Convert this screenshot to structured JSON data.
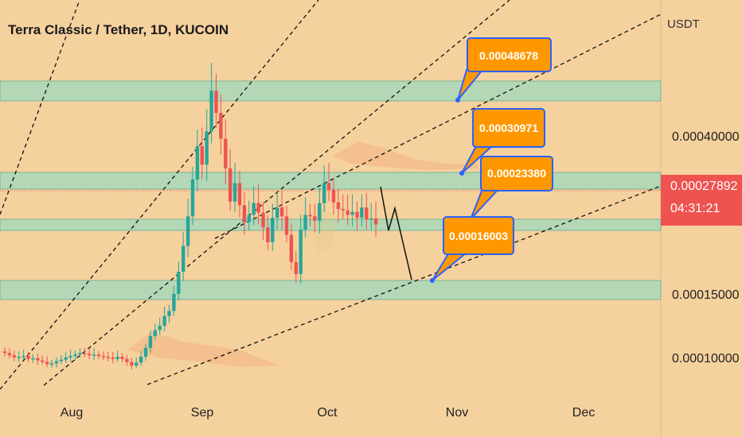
{
  "header": {
    "title": "Terra Classic / Tether, 1D, KUCOIN"
  },
  "y_axis": {
    "unit": "USDT",
    "ticks": [
      "0.00040000",
      "0.00015000",
      "0.00010000"
    ]
  },
  "x_axis": {
    "ticks": [
      "Aug",
      "Sep",
      "Oct",
      "Nov",
      "Dec"
    ]
  },
  "price_tag": {
    "value": "0.00027892",
    "countdown": "04:31:21",
    "color": "#ef5350"
  },
  "annotations": {
    "labels": [
      "0.00048678",
      "0.00030971",
      "0.00023380",
      "0.00016003"
    ],
    "label_bg": "#ff9800",
    "label_border": "#2962ff"
  },
  "colors": {
    "background": "#f5d19e",
    "zone_fill": "#a8d8b8",
    "zone_edge": "#7ab39a",
    "up": "#26a69a",
    "down": "#ef5350"
  },
  "chart_data": {
    "type": "candlestick",
    "symbol": "Terra Classic / Tether",
    "interval": "1D",
    "exchange": "KUCOIN",
    "y_unit": "USDT",
    "x_ticks": [
      "Aug",
      "Sep",
      "Oct",
      "Nov",
      "Dec"
    ],
    "y_ticks": [
      0.0004,
      0.00015,
      0.0001
    ],
    "last_price": 0.00027892,
    "countdown": "04:31:21",
    "horizontal_zones": [
      0.00048678,
      0.00030971,
      0.0002338,
      0.00016003
    ],
    "closes": [
      0.000105,
      0.000102,
      9.9e-05,
      0.0001,
      0.000101,
      9.7e-05,
      9.8e-05,
      9.5e-05,
      9.3e-05,
      9e-05,
      9.1e-05,
      9.4e-05,
      9.6e-05,
      9.9e-05,
      0.000101,
      0.000103,
      0.000105,
      0.000104,
      0.000102,
      0.000103,
      0.000101,
      0.0001,
      9.9e-05,
      9.7e-05,
      0.0001,
      9.7e-05,
      9.3e-05,
      8.8e-05,
      9.2e-05,
      0.0001,
      0.000112,
      0.000128,
      0.000136,
      0.000142,
      0.000155,
      0.000162,
      0.000185,
      0.000215,
      0.00025,
      0.00029,
      0.00034,
      0.000385,
      0.00036,
      0.000405,
      0.00046,
      0.00043,
      0.000395,
      0.000355,
      0.00031,
      0.000335,
      0.000305,
      0.000282,
      0.000292,
      0.000308,
      0.000295,
      0.000275,
      0.000255,
      0.000288,
      0.000302,
      0.00029,
      0.000265,
      0.000228,
      0.000212,
      0.000272,
      0.000292,
      0.00029,
      0.000284,
      0.000308,
      0.000335,
      0.000326,
      0.000309,
      0.0003,
      0.000298,
      0.000292,
      0.000296,
      0.000288,
      0.000302,
      0.000286,
      0.000287,
      0.000279
    ],
    "projection": [
      0.000279,
      0.00019,
      0.000252,
      0.00016
    ],
    "trend_lines": 4
  }
}
